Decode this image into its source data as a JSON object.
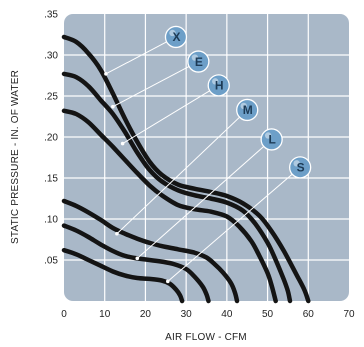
{
  "chart_data": {
    "type": "line",
    "xlabel": "AIR FLOW - CFM",
    "ylabel": "STATIC PRESSURE - IN. OF WATER",
    "xlim": [
      0,
      70
    ],
    "ylim": [
      0,
      0.35
    ],
    "x_ticks": [
      "0",
      "10",
      "20",
      "30",
      "40",
      "50",
      "60",
      "70"
    ],
    "y_ticks": [
      ".05",
      ".10",
      ".15",
      ".20",
      ".25",
      ".30",
      ".35"
    ],
    "grid": true,
    "colors": {
      "plot_bg": "#a9b8c8",
      "grid": "#ffffff",
      "curve": "#141414",
      "marker": "#6d9fc8"
    },
    "series": [
      {
        "name": "X",
        "label_at": [
          27.5,
          0.322
        ],
        "callout_to": [
          10.3,
          0.277
        ],
        "points": [
          [
            0,
            0.322
          ],
          [
            3,
            0.316
          ],
          [
            6,
            0.302
          ],
          [
            9,
            0.282
          ],
          [
            12,
            0.253
          ],
          [
            15,
            0.222
          ],
          [
            18,
            0.194
          ],
          [
            21,
            0.17
          ],
          [
            24,
            0.154
          ],
          [
            28,
            0.142
          ],
          [
            32,
            0.137
          ],
          [
            36,
            0.133
          ],
          [
            40,
            0.128
          ],
          [
            44,
            0.119
          ],
          [
            48,
            0.104
          ],
          [
            51,
            0.085
          ],
          [
            54,
            0.061
          ],
          [
            57,
            0.033
          ],
          [
            59,
            0.014
          ],
          [
            60,
            0
          ]
        ]
      },
      {
        "name": "E",
        "label_at": [
          33,
          0.292
        ],
        "callout_to": [
          12,
          0.237
        ],
        "points": [
          [
            0,
            0.277
          ],
          [
            3,
            0.273
          ],
          [
            6,
            0.262
          ],
          [
            9,
            0.245
          ],
          [
            12,
            0.228
          ],
          [
            15,
            0.206
          ],
          [
            18,
            0.181
          ],
          [
            21,
            0.16
          ],
          [
            24,
            0.146
          ],
          [
            28,
            0.135
          ],
          [
            32,
            0.129
          ],
          [
            36,
            0.125
          ],
          [
            40,
            0.12
          ],
          [
            44,
            0.11
          ],
          [
            47,
            0.094
          ],
          [
            50,
            0.071
          ],
          [
            52,
            0.05
          ],
          [
            54,
            0.026
          ],
          [
            55,
            0.012
          ],
          [
            55.5,
            0
          ]
        ]
      },
      {
        "name": "H",
        "label_at": [
          38,
          0.263
        ],
        "callout_to": [
          14.4,
          0.192
        ],
        "points": [
          [
            0,
            0.232
          ],
          [
            3,
            0.228
          ],
          [
            6,
            0.218
          ],
          [
            9,
            0.203
          ],
          [
            12,
            0.188
          ],
          [
            15,
            0.172
          ],
          [
            18,
            0.156
          ],
          [
            21,
            0.141
          ],
          [
            24,
            0.129
          ],
          [
            28,
            0.117
          ],
          [
            32,
            0.112
          ],
          [
            36,
            0.109
          ],
          [
            40,
            0.103
          ],
          [
            43,
            0.091
          ],
          [
            46,
            0.073
          ],
          [
            48,
            0.055
          ],
          [
            50,
            0.034
          ],
          [
            51,
            0.019
          ],
          [
            52,
            0
          ]
        ]
      },
      {
        "name": "M",
        "label_at": [
          45,
          0.233
        ],
        "callout_to": [
          13,
          0.082
        ],
        "points": [
          [
            0,
            0.122
          ],
          [
            3,
            0.116
          ],
          [
            6,
            0.108
          ],
          [
            9,
            0.099
          ],
          [
            12,
            0.089
          ],
          [
            15,
            0.082
          ],
          [
            18,
            0.076
          ],
          [
            21,
            0.071
          ],
          [
            24,
            0.067
          ],
          [
            28,
            0.063
          ],
          [
            32,
            0.059
          ],
          [
            35,
            0.053
          ],
          [
            37,
            0.045
          ],
          [
            39,
            0.035
          ],
          [
            41,
            0.022
          ],
          [
            42,
            0.01
          ],
          [
            42.5,
            0
          ]
        ]
      },
      {
        "name": "L",
        "label_at": [
          51,
          0.197
        ],
        "callout_to": [
          18,
          0.052
        ],
        "points": [
          [
            0,
            0.092
          ],
          [
            3,
            0.086
          ],
          [
            6,
            0.078
          ],
          [
            9,
            0.069
          ],
          [
            12,
            0.061
          ],
          [
            15,
            0.055
          ],
          [
            18,
            0.052
          ],
          [
            21,
            0.05
          ],
          [
            24,
            0.048
          ],
          [
            27,
            0.045
          ],
          [
            30,
            0.039
          ],
          [
            32,
            0.03
          ],
          [
            34,
            0.018
          ],
          [
            35,
            0.008
          ],
          [
            35.5,
            0
          ]
        ]
      },
      {
        "name": "S",
        "label_at": [
          58,
          0.163
        ],
        "callout_to": [
          25.5,
          0.024
        ],
        "points": [
          [
            0,
            0.062
          ],
          [
            3,
            0.057
          ],
          [
            6,
            0.05
          ],
          [
            9,
            0.043
          ],
          [
            12,
            0.036
          ],
          [
            15,
            0.031
          ],
          [
            18,
            0.028
          ],
          [
            21,
            0.027
          ],
          [
            24,
            0.025
          ],
          [
            26,
            0.021
          ],
          [
            27.5,
            0.014
          ],
          [
            28.5,
            0.007
          ],
          [
            29,
            0
          ]
        ]
      }
    ]
  }
}
